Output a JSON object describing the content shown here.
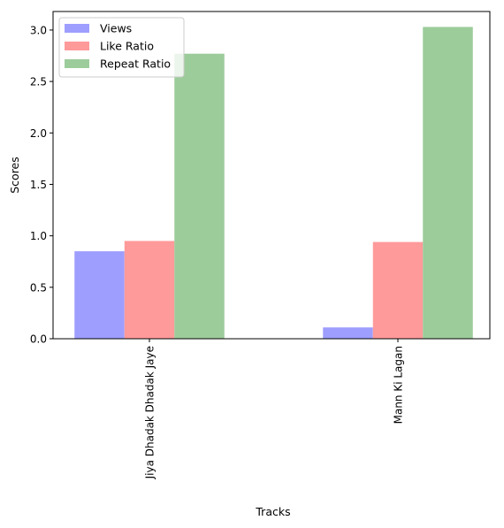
{
  "chart_data": {
    "type": "bar",
    "title": "",
    "xlabel": "Tracks",
    "ylabel": "Scores",
    "categories": [
      "Jiya Dhadak Dhadak Jaye",
      "Mann Ki Lagan"
    ],
    "series": [
      {
        "name": "Views",
        "values": [
          0.85,
          0.11
        ],
        "color": "#9e9eff"
      },
      {
        "name": "Like Ratio",
        "values": [
          0.95,
          0.94
        ],
        "color": "#ff9a9a"
      },
      {
        "name": "Repeat Ratio",
        "values": [
          2.77,
          3.03
        ],
        "color": "#9ccc9a"
      }
    ],
    "ylim": [
      0,
      3.18
    ],
    "yticks": [
      0.0,
      0.5,
      1.0,
      1.5,
      2.0,
      2.5,
      3.0
    ],
    "ytick_labels": [
      "0.0",
      "0.5",
      "1.0",
      "1.5",
      "2.0",
      "2.5",
      "3.0"
    ],
    "grid": false,
    "legend_position": "top-left",
    "xtick_rotation": "vertical"
  }
}
